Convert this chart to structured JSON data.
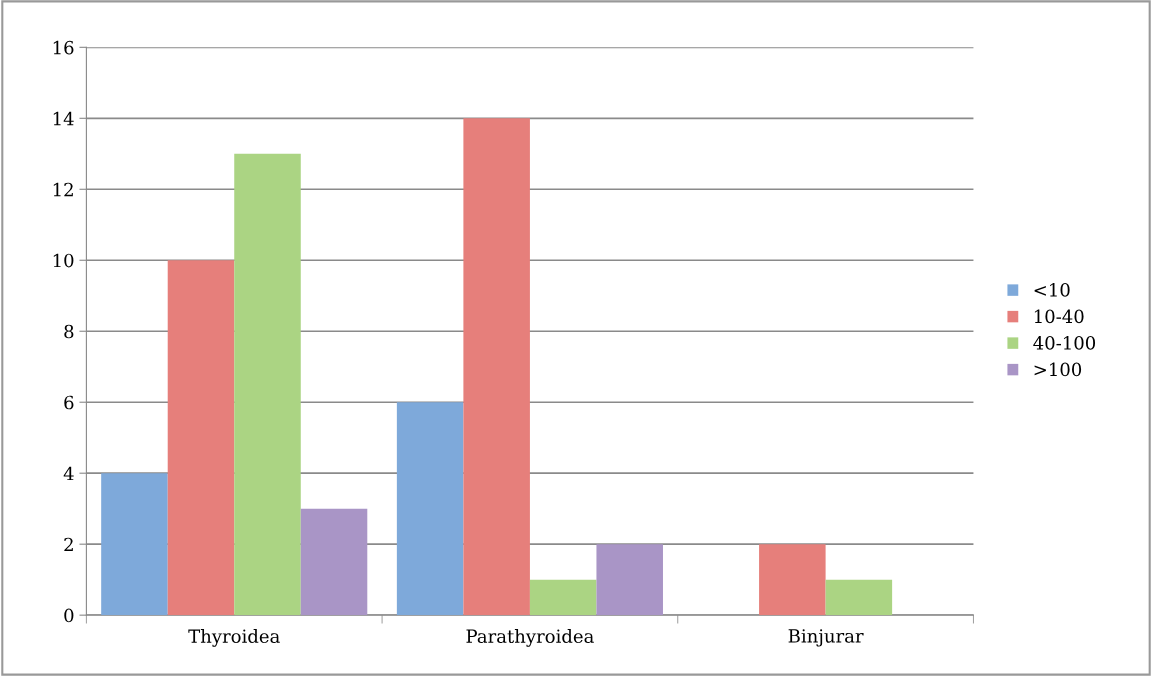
{
  "chart_data": {
    "type": "bar",
    "categories": [
      "Thyroidea",
      "Parathyroidea",
      "Binjurar"
    ],
    "series": [
      {
        "name": "<10",
        "color": "#7ea9da",
        "values": [
          4,
          6,
          0
        ]
      },
      {
        "name": "10-40",
        "color": "#e67f7b",
        "values": [
          10,
          14,
          2
        ]
      },
      {
        "name": "40-100",
        "color": "#abd483",
        "values": [
          13,
          1,
          1
        ]
      },
      {
        "name": ">100",
        "color": "#a995c6",
        "values": [
          3,
          2,
          0
        ]
      }
    ],
    "ylim": [
      0,
      16
    ],
    "yticks": [
      0,
      2,
      4,
      6,
      8,
      10,
      12,
      14,
      16
    ],
    "grid": "y",
    "legend": "right"
  }
}
